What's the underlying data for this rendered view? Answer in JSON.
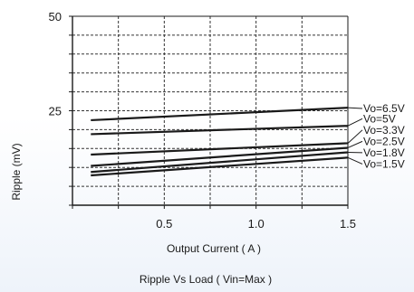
{
  "chart_data": {
    "type": "line",
    "title": "",
    "caption": "Ripple  Vs Load ( Vin=Max )",
    "xlabel": "Output Current ( A )",
    "ylabel": "Ripple (mV)",
    "xlim": [
      0,
      1.5
    ],
    "ylim": [
      0,
      50
    ],
    "x_ticks": [
      0.5,
      1.0,
      1.5
    ],
    "x_tick_labels": [
      "0.5",
      "1.0",
      "1.5"
    ],
    "y_tick_labels": [
      {
        "value": 50,
        "label": "50"
      },
      {
        "value": 25,
        "label": "25"
      }
    ],
    "grid": true,
    "grid_style": "dashed",
    "legend": "right-side line labels",
    "series": [
      {
        "name": "Vo=6.5V",
        "x": [
          0.1,
          1.5
        ],
        "y": [
          22.5,
          25.8
        ]
      },
      {
        "name": "Vo=5V",
        "x": [
          0.1,
          1.5
        ],
        "y": [
          18.8,
          21.0
        ]
      },
      {
        "name": "Vo=3.3V",
        "x": [
          0.1,
          1.5
        ],
        "y": [
          13.4,
          16.4
        ]
      },
      {
        "name": "Vo=2.5V",
        "x": [
          0.1,
          1.5
        ],
        "y": [
          10.4,
          15.2
        ]
      },
      {
        "name": "Vo=1.8V",
        "x": [
          0.1,
          1.5
        ],
        "y": [
          8.8,
          14.0
        ]
      },
      {
        "name": "Vo=1.5V",
        "x": [
          0.1,
          1.5
        ],
        "y": [
          7.9,
          12.6
        ]
      }
    ],
    "label_y": [
      25.6,
      22.9,
      19.9,
      16.9,
      13.9,
      10.9
    ],
    "colors": {
      "line": "#1a1a1a",
      "grid": "#333333",
      "axis": "#1a1a1a"
    }
  }
}
